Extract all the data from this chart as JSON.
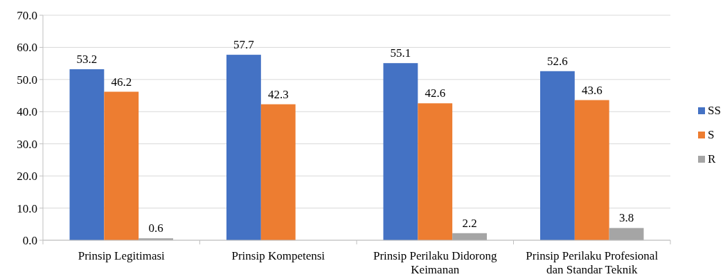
{
  "chart_data": {
    "type": "bar",
    "categories": [
      "Prinsip Legitimasi",
      "Prinsip Kompetensi",
      "Prinsip Perilaku Didorong Keimanan",
      "Prinsip Perilaku Profesional dan Standar Teknik"
    ],
    "series": [
      {
        "name": "SS",
        "color": "#4472c4",
        "values": [
          53.2,
          57.7,
          55.1,
          52.6
        ]
      },
      {
        "name": "S",
        "color": "#ed7d31",
        "values": [
          46.2,
          42.3,
          42.6,
          43.6
        ]
      },
      {
        "name": "R",
        "color": "#a5a5a5",
        "values": [
          0.6,
          null,
          2.2,
          3.8
        ]
      }
    ],
    "ylim": [
      0,
      70
    ],
    "yticks": [
      {
        "value": 0,
        "label": "0.0"
      },
      {
        "value": 10,
        "label": "10.0"
      },
      {
        "value": 20,
        "label": "20.0"
      },
      {
        "value": 30,
        "label": "30.0"
      },
      {
        "value": 40,
        "label": "40.0"
      },
      {
        "value": 50,
        "label": "50.0"
      },
      {
        "value": 60,
        "label": "60.0"
      },
      {
        "value": 70,
        "label": "70.0"
      }
    ],
    "grid": "y",
    "legend": "right",
    "data_labels": true
  }
}
